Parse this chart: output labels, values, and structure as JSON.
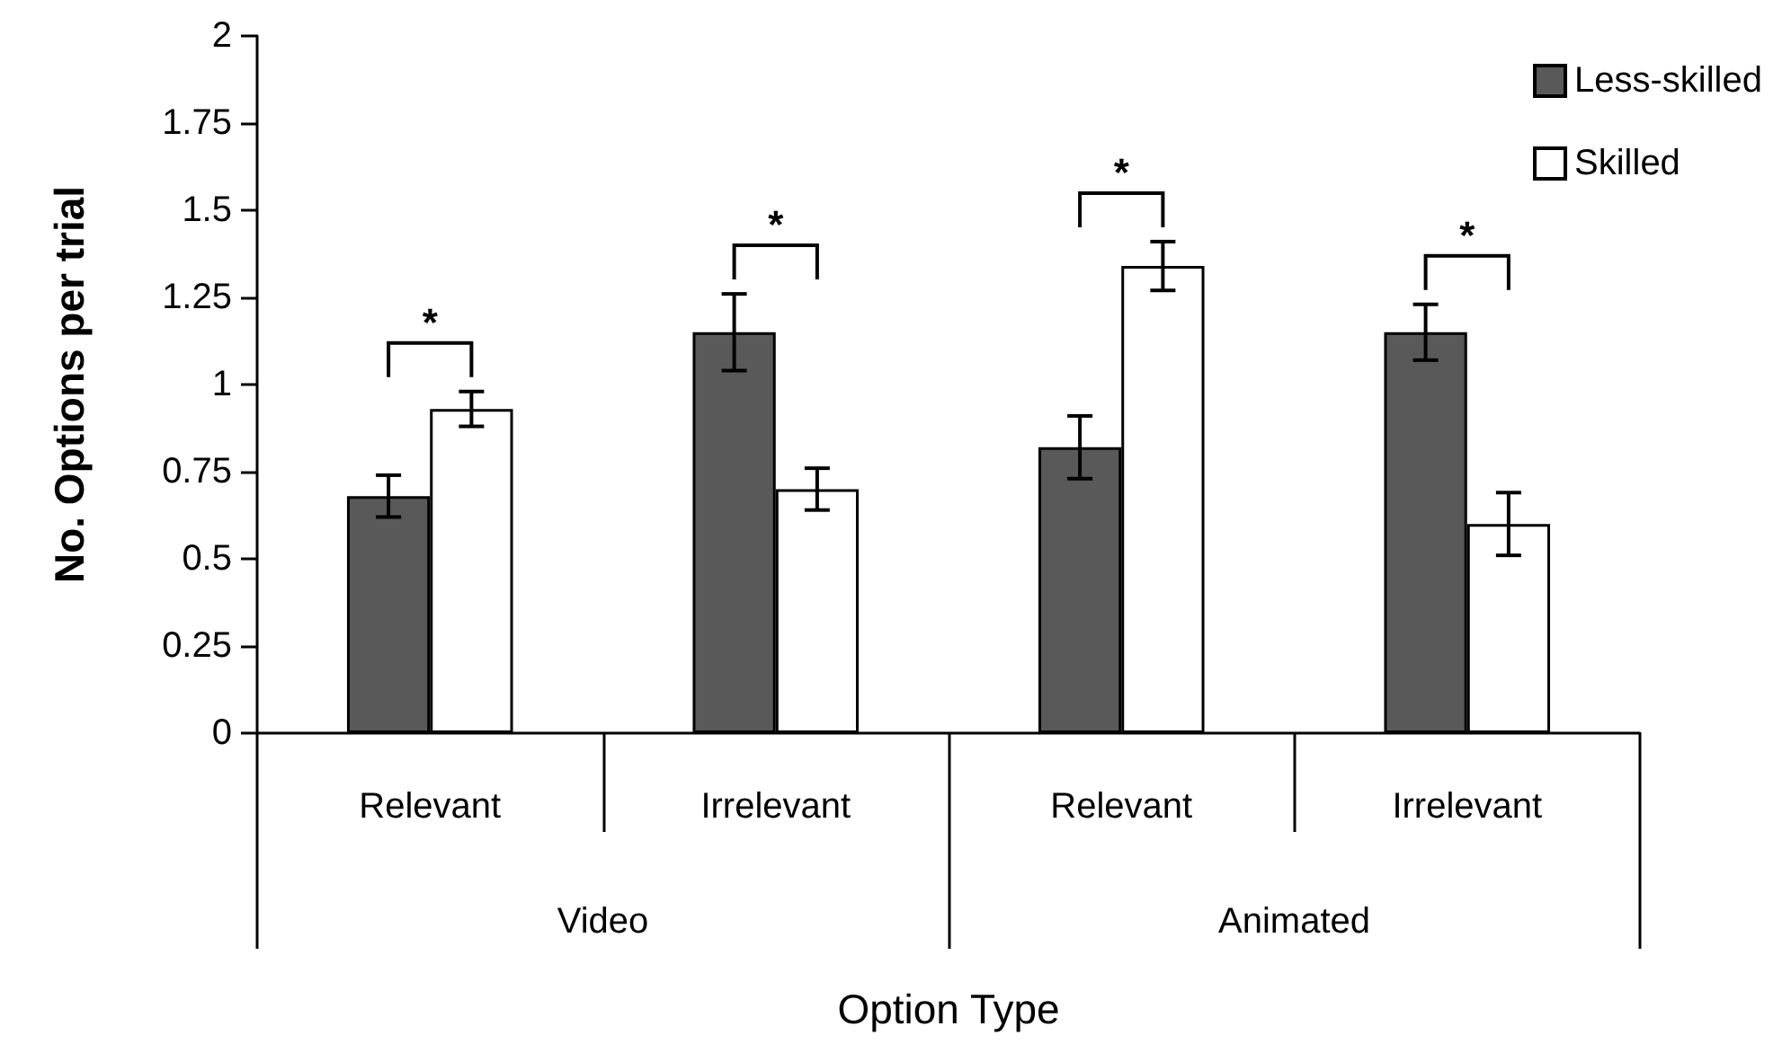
{
  "chart_data": {
    "type": "bar",
    "ylabel": "No. Options per trial",
    "xlabel": "Option Type",
    "categories": [
      "Relevant",
      "Irrelevant",
      "Relevant",
      "Irrelevant"
    ],
    "series": [
      {
        "name": "Less-skilled",
        "color": "#595959",
        "values": [
          0.68,
          1.15,
          0.82,
          1.15
        ],
        "errors": [
          0.06,
          0.11,
          0.09,
          0.08
        ]
      },
      {
        "name": "Skilled",
        "color": "#ffffff",
        "values": [
          0.93,
          0.7,
          1.34,
          0.6
        ],
        "errors": [
          0.05,
          0.06,
          0.07,
          0.09
        ]
      }
    ],
    "ylim": [
      0,
      2
    ],
    "yticks": [
      0,
      0.25,
      0.5,
      0.75,
      1,
      1.25,
      1.5,
      1.75,
      2
    ],
    "legend": "top right",
    "annotations": [
      "*",
      "*",
      "*",
      "*",
      "Video",
      "Animated"
    ]
  }
}
